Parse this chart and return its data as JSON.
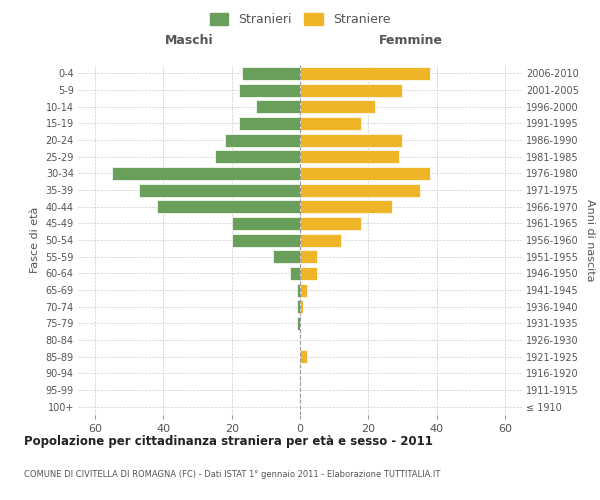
{
  "age_groups": [
    "100+",
    "95-99",
    "90-94",
    "85-89",
    "80-84",
    "75-79",
    "70-74",
    "65-69",
    "60-64",
    "55-59",
    "50-54",
    "45-49",
    "40-44",
    "35-39",
    "30-34",
    "25-29",
    "20-24",
    "15-19",
    "10-14",
    "5-9",
    "0-4"
  ],
  "birth_years": [
    "≤ 1910",
    "1911-1915",
    "1916-1920",
    "1921-1925",
    "1926-1930",
    "1931-1935",
    "1936-1940",
    "1941-1945",
    "1946-1950",
    "1951-1955",
    "1956-1960",
    "1961-1965",
    "1966-1970",
    "1971-1975",
    "1976-1980",
    "1981-1985",
    "1986-1990",
    "1991-1995",
    "1996-2000",
    "2001-2005",
    "2006-2010"
  ],
  "males": [
    0,
    0,
    0,
    0,
    0,
    1,
    1,
    1,
    3,
    8,
    20,
    20,
    42,
    47,
    55,
    25,
    22,
    18,
    13,
    18,
    17
  ],
  "females": [
    0,
    0,
    0,
    2,
    0,
    0,
    1,
    2,
    5,
    5,
    12,
    18,
    27,
    35,
    38,
    29,
    30,
    18,
    22,
    30,
    38
  ],
  "male_color": "#6a9e5b",
  "female_color": "#f0b429",
  "xlim": 65,
  "title": "Popolazione per cittadinanza straniera per età e sesso - 2011",
  "subtitle": "COMUNE DI CIVITELLA DI ROMAGNA (FC) - Dati ISTAT 1° gennaio 2011 - Elaborazione TUTTITALIA.IT",
  "ylabel_left": "Fasce di età",
  "ylabel_right": "Anni di nascita",
  "header_left": "Maschi",
  "header_right": "Femmine",
  "legend_male": "Stranieri",
  "legend_female": "Straniere",
  "background_color": "#ffffff",
  "grid_color": "#cccccc"
}
